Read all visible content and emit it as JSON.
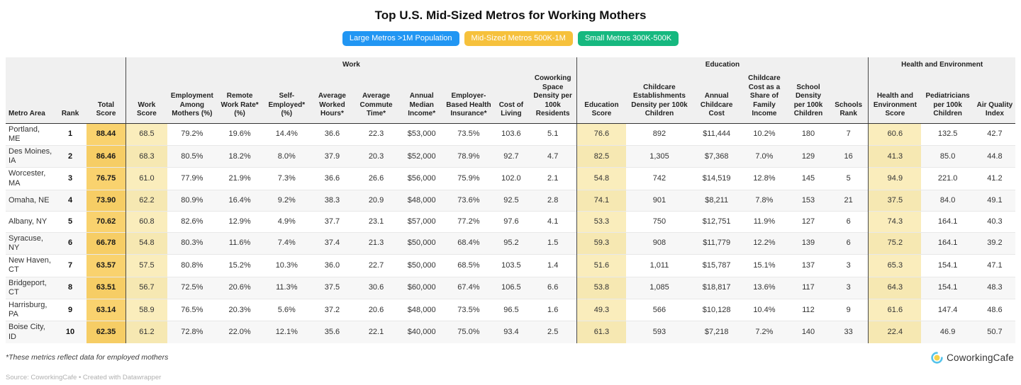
{
  "tabs": {
    "items": [
      {
        "label": "Large Metros >1M Population",
        "color": "#2196f3",
        "active": false
      },
      {
        "label": "Mid-Sized Metros 500K-1M",
        "color": "#f6c13c",
        "active": true
      },
      {
        "label": "Small Metros 300K-500K",
        "color": "#16b87f",
        "active": false
      }
    ]
  },
  "chart_data": {
    "type": "table",
    "title": "Top U.S. Mid-Sized Metros for Working Mothers",
    "column_groups": [
      {
        "label": "",
        "span": 3
      },
      {
        "label": "Work",
        "span": 10
      },
      {
        "label": "Education",
        "span": 6
      },
      {
        "label": "Health and Environment",
        "span": 3
      }
    ],
    "columns": [
      "Metro Area",
      "Rank",
      "Total Score",
      "Work Score",
      "Employment Among Mothers (%)",
      "Remote Work Rate* (%)",
      "Self-Employed* (%)",
      "Average Worked Hours*",
      "Average Commute Time*",
      "Annual Median Income*",
      "Employer-Based Health Insurance*",
      "Cost of Living",
      "Coworking Space Density per 100k Residents",
      "Education Score",
      "Childcare Establishments Density per 100k Children",
      "Annual Childcare Cost",
      "Childcare Cost as a Share of Family Income",
      "School Density per 100k Children",
      "Schools Rank",
      "Health and Environment Score",
      "Pediatricians per 100k Children",
      "Air Quality Index"
    ],
    "rows": [
      [
        "Portland, ME",
        "1",
        "88.44",
        "68.5",
        "79.2%",
        "19.6%",
        "14.4%",
        "36.6",
        "22.3",
        "$53,000",
        "73.5%",
        "103.6",
        "5.1",
        "76.6",
        "892",
        "$11,444",
        "10.2%",
        "180",
        "7",
        "60.6",
        "132.5",
        "42.7"
      ],
      [
        "Des Moines, IA",
        "2",
        "86.46",
        "68.3",
        "80.5%",
        "18.2%",
        "8.0%",
        "37.9",
        "20.3",
        "$52,000",
        "78.9%",
        "92.7",
        "4.7",
        "82.5",
        "1,305",
        "$7,368",
        "7.0%",
        "129",
        "16",
        "41.3",
        "85.0",
        "44.8"
      ],
      [
        "Worcester, MA",
        "3",
        "76.75",
        "61.0",
        "77.9%",
        "21.9%",
        "7.3%",
        "36.6",
        "26.6",
        "$56,000",
        "75.9%",
        "102.0",
        "2.1",
        "54.8",
        "742",
        "$14,519",
        "12.8%",
        "145",
        "5",
        "94.9",
        "221.0",
        "41.2"
      ],
      [
        "Omaha, NE",
        "4",
        "73.90",
        "62.2",
        "80.9%",
        "16.4%",
        "9.2%",
        "38.3",
        "20.9",
        "$48,000",
        "73.6%",
        "92.5",
        "2.8",
        "74.1",
        "901",
        "$8,211",
        "7.8%",
        "153",
        "21",
        "37.5",
        "84.0",
        "49.1"
      ],
      [
        "Albany, NY",
        "5",
        "70.62",
        "60.8",
        "82.6%",
        "12.9%",
        "4.9%",
        "37.7",
        "23.1",
        "$57,000",
        "77.2%",
        "97.6",
        "4.1",
        "53.3",
        "750",
        "$12,751",
        "11.9%",
        "127",
        "6",
        "74.3",
        "164.1",
        "40.3"
      ],
      [
        "Syracuse, NY",
        "6",
        "66.78",
        "54.8",
        "80.3%",
        "11.6%",
        "7.4%",
        "37.4",
        "21.3",
        "$50,000",
        "68.4%",
        "95.2",
        "1.5",
        "59.3",
        "908",
        "$11,779",
        "12.2%",
        "139",
        "6",
        "75.2",
        "164.1",
        "39.2"
      ],
      [
        "New Haven, CT",
        "7",
        "63.57",
        "57.5",
        "80.8%",
        "15.2%",
        "10.3%",
        "36.0",
        "22.7",
        "$50,000",
        "68.5%",
        "103.5",
        "1.4",
        "51.6",
        "1,011",
        "$15,787",
        "15.1%",
        "137",
        "3",
        "65.3",
        "154.1",
        "47.1"
      ],
      [
        "Bridgeport, CT",
        "8",
        "63.51",
        "56.7",
        "72.5%",
        "20.6%",
        "11.3%",
        "37.5",
        "30.6",
        "$60,000",
        "67.4%",
        "106.5",
        "6.6",
        "53.8",
        "1,085",
        "$18,817",
        "13.6%",
        "117",
        "3",
        "64.3",
        "154.1",
        "48.3"
      ],
      [
        "Harrisburg, PA",
        "9",
        "63.14",
        "58.9",
        "76.5%",
        "20.3%",
        "5.6%",
        "37.2",
        "20.6",
        "$48,000",
        "73.5%",
        "96.5",
        "1.6",
        "49.3",
        "566",
        "$10,128",
        "10.4%",
        "112",
        "9",
        "61.6",
        "147.4",
        "48.6"
      ],
      [
        "Boise City, ID",
        "10",
        "62.35",
        "61.2",
        "72.8%",
        "22.0%",
        "12.1%",
        "35.6",
        "22.1",
        "$40,000",
        "75.0%",
        "93.4",
        "2.5",
        "61.3",
        "593",
        "$7,218",
        "7.2%",
        "140",
        "33",
        "22.4",
        "46.9",
        "50.7"
      ]
    ]
  },
  "footnote": "*These metrics reflect data for employed mothers",
  "source": "Source: CoworkingCafe • Created with Datawrapper",
  "logo": {
    "text": "CoworkingCafe"
  },
  "colors": {
    "total_score_highlight": "#f9d26e",
    "score_highlight": "#faedbc",
    "header_bg": "#f0f0f0",
    "stripe": "#f7f7f7"
  }
}
